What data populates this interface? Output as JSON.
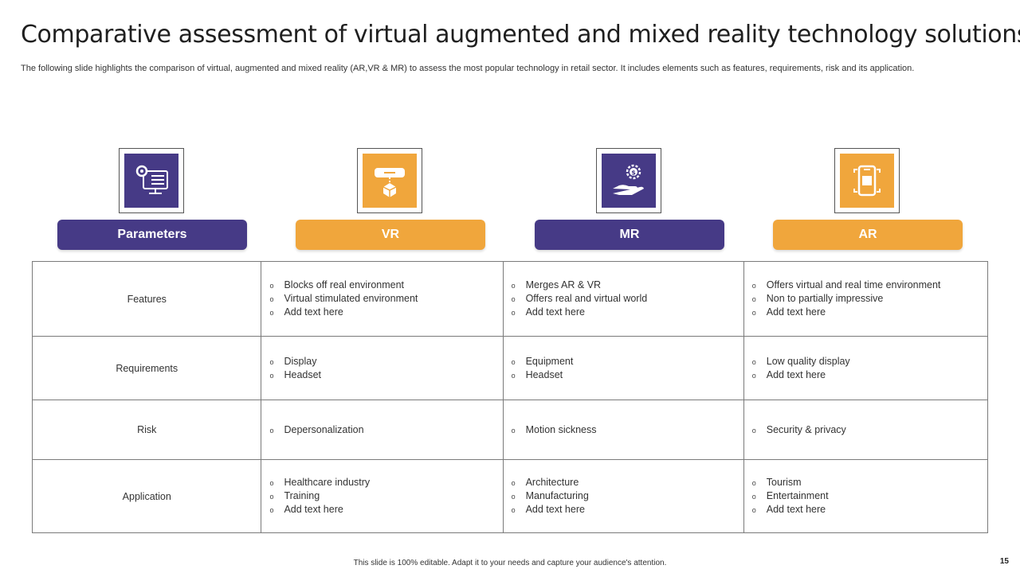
{
  "title": "Comparative assessment of virtual augmented and mixed reality technology solutions",
  "subtitle": "The following slide highlights the comparison of virtual, augmented and mixed reality (AR,VR & MR) to assess the most popular technology in retail sector. It includes elements such as features, requirements, risk and its application.",
  "columns": [
    {
      "label": "Parameters",
      "color": "#463a86",
      "icon": "computer-settings-icon"
    },
    {
      "label": "VR",
      "color": "#f0a63c",
      "icon": "vr-headset-icon"
    },
    {
      "label": "MR",
      "color": "#463a86",
      "icon": "hand-money-gear-icon"
    },
    {
      "label": "AR",
      "color": "#f0a63c",
      "icon": "mobile-ar-icon"
    }
  ],
  "rows": [
    {
      "parameter": "Features",
      "vr": [
        "Blocks off real environment",
        "Virtual stimulated environment",
        "Add text here"
      ],
      "mr": [
        "Merges AR & VR",
        "Offers  real and virtual world",
        "Add text here"
      ],
      "ar": [
        "Offers virtual  and real time environment",
        "Non to partially impressive",
        "Add text here"
      ]
    },
    {
      "parameter": "Requirements",
      "vr": [
        "Display",
        "Headset"
      ],
      "mr": [
        "Equipment",
        "Headset"
      ],
      "ar": [
        "Low  quality display",
        "Add text here"
      ]
    },
    {
      "parameter": "Risk",
      "vr": [
        "Depersonalization"
      ],
      "mr": [
        "Motion sickness"
      ],
      "ar": [
        "Security & privacy"
      ]
    },
    {
      "parameter": "Application",
      "vr": [
        "Healthcare  industry",
        "Training",
        "Add text here"
      ],
      "mr": [
        "Architecture",
        "Manufacturing",
        "Add text here"
      ],
      "ar": [
        "Tourism",
        "Entertainment",
        "Add text here"
      ]
    }
  ],
  "bullet_glyph": "o",
  "footer": "This slide is 100% editable. Adapt it to your needs and capture your audience's attention.",
  "page_number": "15"
}
